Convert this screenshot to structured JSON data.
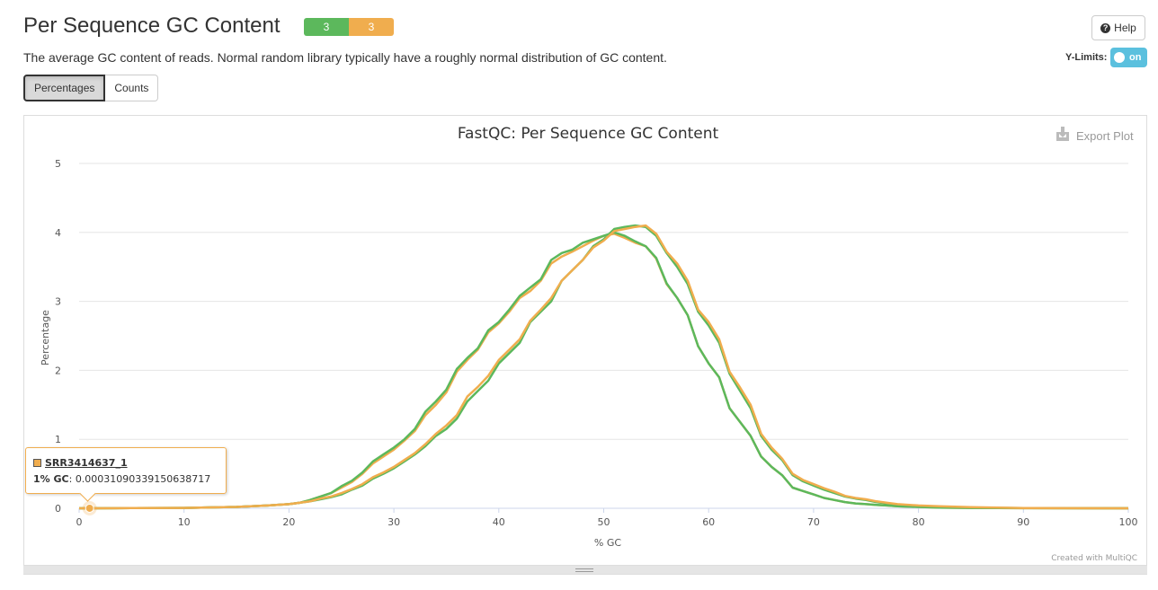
{
  "page": {
    "title": "Per Sequence GC Content",
    "badges": [
      {
        "label": "3",
        "status": "pass",
        "color": "#5cb85c"
      },
      {
        "label": "3",
        "status": "warn",
        "color": "#f0ad4e"
      }
    ],
    "help_label": "Help",
    "help_icon": "question-circle-icon",
    "description": "The average GC content of reads. Normal random library typically have a roughly normal distribution of GC content.",
    "ylimits_label": "Y-Limits:",
    "ylimits_toggle": "on",
    "view_buttons": [
      "Percentages",
      "Counts"
    ],
    "active_view": "Percentages",
    "export_label": "Export Plot",
    "export_icon": "download-icon",
    "credit": "Created with MultiQC"
  },
  "tooltip": {
    "sample": "SRR3414637_1",
    "key": "1% GC",
    "value": "0.00031090339150638717"
  },
  "chart_data": {
    "type": "line",
    "title": "FastQC: Per Sequence GC Content",
    "xlabel": "% GC",
    "ylabel": "Percentage",
    "xlim": [
      0,
      100
    ],
    "ylim": [
      0,
      5
    ],
    "xticks": [
      0,
      10,
      20,
      30,
      40,
      50,
      60,
      70,
      80,
      90,
      100
    ],
    "yticks": [
      0,
      1,
      2,
      3,
      4,
      5
    ],
    "grid": true,
    "legend": "none",
    "series": [
      {
        "color": "#5cb85c",
        "x": [
          0,
          5,
          10,
          15,
          18,
          20,
          21,
          22,
          23,
          24,
          25,
          26,
          27,
          28,
          29,
          30,
          31,
          32,
          33,
          34,
          35,
          36,
          37,
          38,
          39,
          40,
          41,
          42,
          43,
          44,
          45,
          46,
          47,
          48,
          49,
          50,
          51,
          52,
          53,
          54,
          55,
          56,
          57,
          58,
          59,
          60,
          61,
          62,
          63,
          64,
          65,
          66,
          67,
          68,
          69,
          70,
          71,
          72,
          73,
          74,
          75,
          76,
          77,
          78,
          80,
          82,
          85,
          90,
          100
        ],
        "values": [
          0,
          0.002,
          0.005,
          0.02,
          0.04,
          0.06,
          0.08,
          0.1,
          0.13,
          0.16,
          0.2,
          0.27,
          0.33,
          0.43,
          0.5,
          0.58,
          0.68,
          0.78,
          0.9,
          1.05,
          1.15,
          1.3,
          1.55,
          1.7,
          1.85,
          2.1,
          2.25,
          2.4,
          2.7,
          2.85,
          3.0,
          3.3,
          3.45,
          3.6,
          3.8,
          3.9,
          4.05,
          4.08,
          4.1,
          4.08,
          3.95,
          3.7,
          3.5,
          3.25,
          2.85,
          2.65,
          2.4,
          1.95,
          1.7,
          1.45,
          1.05,
          0.85,
          0.7,
          0.48,
          0.39,
          0.33,
          0.27,
          0.22,
          0.17,
          0.14,
          0.12,
          0.09,
          0.07,
          0.05,
          0.03,
          0.02,
          0.01,
          0.002,
          0
        ]
      },
      {
        "color": "#f0ad4e",
        "x": [
          0,
          5,
          10,
          15,
          18,
          20,
          21,
          22,
          23,
          24,
          25,
          26,
          27,
          28,
          29,
          30,
          31,
          32,
          33,
          34,
          35,
          36,
          37,
          38,
          39,
          40,
          41,
          42,
          43,
          44,
          45,
          46,
          47,
          48,
          49,
          50,
          51,
          52,
          53,
          54,
          55,
          56,
          57,
          58,
          59,
          60,
          61,
          62,
          63,
          64,
          65,
          66,
          67,
          68,
          69,
          70,
          71,
          72,
          73,
          74,
          75,
          76,
          77,
          78,
          80,
          82,
          85,
          90,
          100
        ],
        "values": [
          0,
          0.002,
          0.005,
          0.02,
          0.04,
          0.06,
          0.08,
          0.12,
          0.17,
          0.22,
          0.3,
          0.38,
          0.5,
          0.65,
          0.75,
          0.85,
          0.98,
          1.12,
          1.35,
          1.5,
          1.68,
          1.98,
          2.15,
          2.3,
          2.55,
          2.68,
          2.85,
          3.05,
          3.15,
          3.3,
          3.55,
          3.65,
          3.72,
          3.8,
          3.88,
          3.95,
          3.98,
          3.92,
          3.85,
          3.8,
          3.62,
          3.25,
          3.05,
          2.8,
          2.35,
          2.1,
          1.9,
          1.45,
          1.25,
          1.05,
          0.75,
          0.6,
          0.48,
          0.3,
          0.25,
          0.2,
          0.15,
          0.12,
          0.09,
          0.07,
          0.06,
          0.05,
          0.04,
          0.03,
          0.02,
          0.01,
          0.005,
          0.001,
          0
        ]
      },
      {
        "color": "#5cb85c",
        "x": [
          0,
          5,
          10,
          15,
          18,
          20,
          21,
          22,
          23,
          24,
          25,
          26,
          27,
          28,
          29,
          30,
          31,
          32,
          33,
          34,
          35,
          36,
          37,
          38,
          39,
          40,
          41,
          42,
          43,
          44,
          45,
          46,
          47,
          48,
          49,
          50,
          51,
          52,
          53,
          54,
          55,
          56,
          57,
          58,
          59,
          60,
          61,
          62,
          63,
          64,
          65,
          66,
          67,
          68,
          69,
          70,
          71,
          72,
          73,
          74,
          75,
          76,
          77,
          78,
          80,
          82,
          85,
          90,
          100
        ],
        "values": [
          0,
          0.002,
          0.005,
          0.02,
          0.04,
          0.06,
          0.08,
          0.12,
          0.17,
          0.22,
          0.32,
          0.4,
          0.52,
          0.68,
          0.78,
          0.88,
          1.0,
          1.15,
          1.4,
          1.55,
          1.72,
          2.02,
          2.18,
          2.32,
          2.58,
          2.7,
          2.88,
          3.08,
          3.2,
          3.32,
          3.6,
          3.7,
          3.75,
          3.85,
          3.9,
          3.95,
          4.0,
          3.95,
          3.87,
          3.8,
          3.63,
          3.26,
          3.05,
          2.8,
          2.35,
          2.1,
          1.9,
          1.45,
          1.25,
          1.05,
          0.75,
          0.6,
          0.48,
          0.3,
          0.25,
          0.2,
          0.15,
          0.12,
          0.09,
          0.07,
          0.06,
          0.05,
          0.04,
          0.03,
          0.02,
          0.01,
          0.005,
          0.001,
          0
        ]
      },
      {
        "color": "#f0ad4e",
        "x": [
          0,
          5,
          10,
          15,
          18,
          20,
          21,
          22,
          23,
          24,
          25,
          26,
          27,
          28,
          29,
          30,
          31,
          32,
          33,
          34,
          35,
          36,
          37,
          38,
          39,
          40,
          41,
          42,
          43,
          44,
          45,
          46,
          47,
          48,
          49,
          50,
          51,
          52,
          53,
          54,
          55,
          56,
          57,
          58,
          59,
          60,
          61,
          62,
          63,
          64,
          65,
          66,
          67,
          68,
          69,
          70,
          71,
          72,
          73,
          74,
          75,
          76,
          77,
          78,
          80,
          82,
          85,
          90,
          100
        ],
        "values": [
          0,
          0.002,
          0.005,
          0.02,
          0.04,
          0.06,
          0.08,
          0.1,
          0.14,
          0.17,
          0.22,
          0.28,
          0.35,
          0.45,
          0.52,
          0.6,
          0.7,
          0.8,
          0.93,
          1.08,
          1.2,
          1.35,
          1.62,
          1.76,
          1.92,
          2.15,
          2.3,
          2.45,
          2.72,
          2.88,
          3.05,
          3.3,
          3.45,
          3.6,
          3.78,
          3.88,
          4.02,
          4.05,
          4.08,
          4.1,
          3.98,
          3.72,
          3.55,
          3.3,
          2.88,
          2.7,
          2.45,
          1.98,
          1.75,
          1.5,
          1.08,
          0.88,
          0.72,
          0.5,
          0.41,
          0.35,
          0.29,
          0.24,
          0.18,
          0.15,
          0.13,
          0.1,
          0.08,
          0.06,
          0.04,
          0.03,
          0.015,
          0.003,
          0
        ]
      }
    ],
    "highlight_point": {
      "x": 1,
      "y": 0.00031090339150638717
    }
  }
}
